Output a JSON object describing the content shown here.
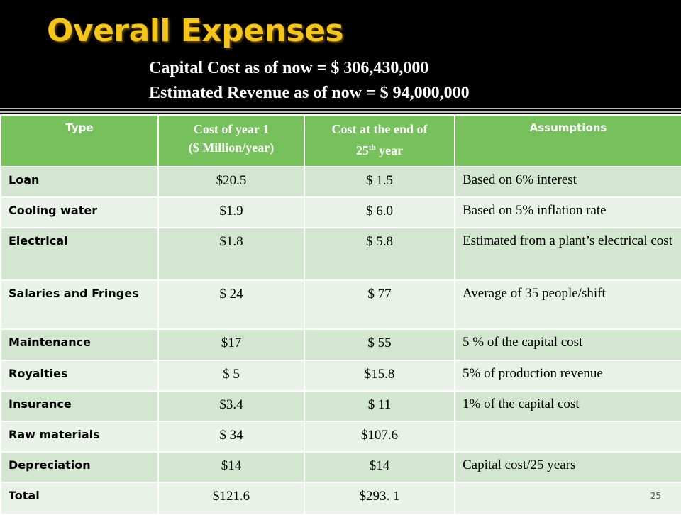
{
  "title": "Overall Expenses",
  "capital_cost_line": "Capital Cost as of now = $ 306,430,000",
  "revenue_line": "Estimated Revenue as of now =  $ 94,000,000",
  "headers": {
    "type": "Type",
    "year1_a": "Cost  of year 1",
    "year1_b": "($ Million/year)",
    "end_a": "Cost at the end of",
    "end_b": "25",
    "end_sup": "th",
    "end_c": " year",
    "assumptions": "Assumptions"
  },
  "rows": [
    {
      "type": "Loan",
      "year1": "$20.5",
      "end25": "$ 1.5",
      "assumption": "Based on 6% interest"
    },
    {
      "type": "Cooling water",
      "year1": "$1.9",
      "end25": "$ 6.0",
      "assumption": "Based on 5% inflation rate"
    },
    {
      "type": "Electrical",
      "year1": "$1.8",
      "end25": "$ 5.8",
      "assumption": "Estimated from a plant’s electrical cost"
    },
    {
      "type": "Salaries and Fringes",
      "year1": "$ 24",
      "end25": "$ 77",
      "assumption": " Average of 35 people/shift"
    },
    {
      "type": "Maintenance",
      "year1": "$17",
      "end25": "$ 55",
      "assumption": "5 % of the capital cost"
    },
    {
      "type": "Royalties",
      "year1": "$ 5",
      "end25": "$15.8",
      "assumption": "5% of production revenue"
    },
    {
      "type": "Insurance",
      "year1": "$3.4",
      "end25": "$ 11",
      "assumption": "1% of the capital cost"
    },
    {
      "type": "Raw materials",
      "year1": "$ 34",
      "end25": "$107.6",
      "assumption": ""
    },
    {
      "type": "Depreciation",
      "year1": "$14",
      "end25": "$14",
      "assumption": "Capital cost/25 years"
    },
    {
      "type": "Total",
      "year1": "$121.6",
      "end25": "$293. 1",
      "assumption": ""
    }
  ],
  "page_number": "25"
}
